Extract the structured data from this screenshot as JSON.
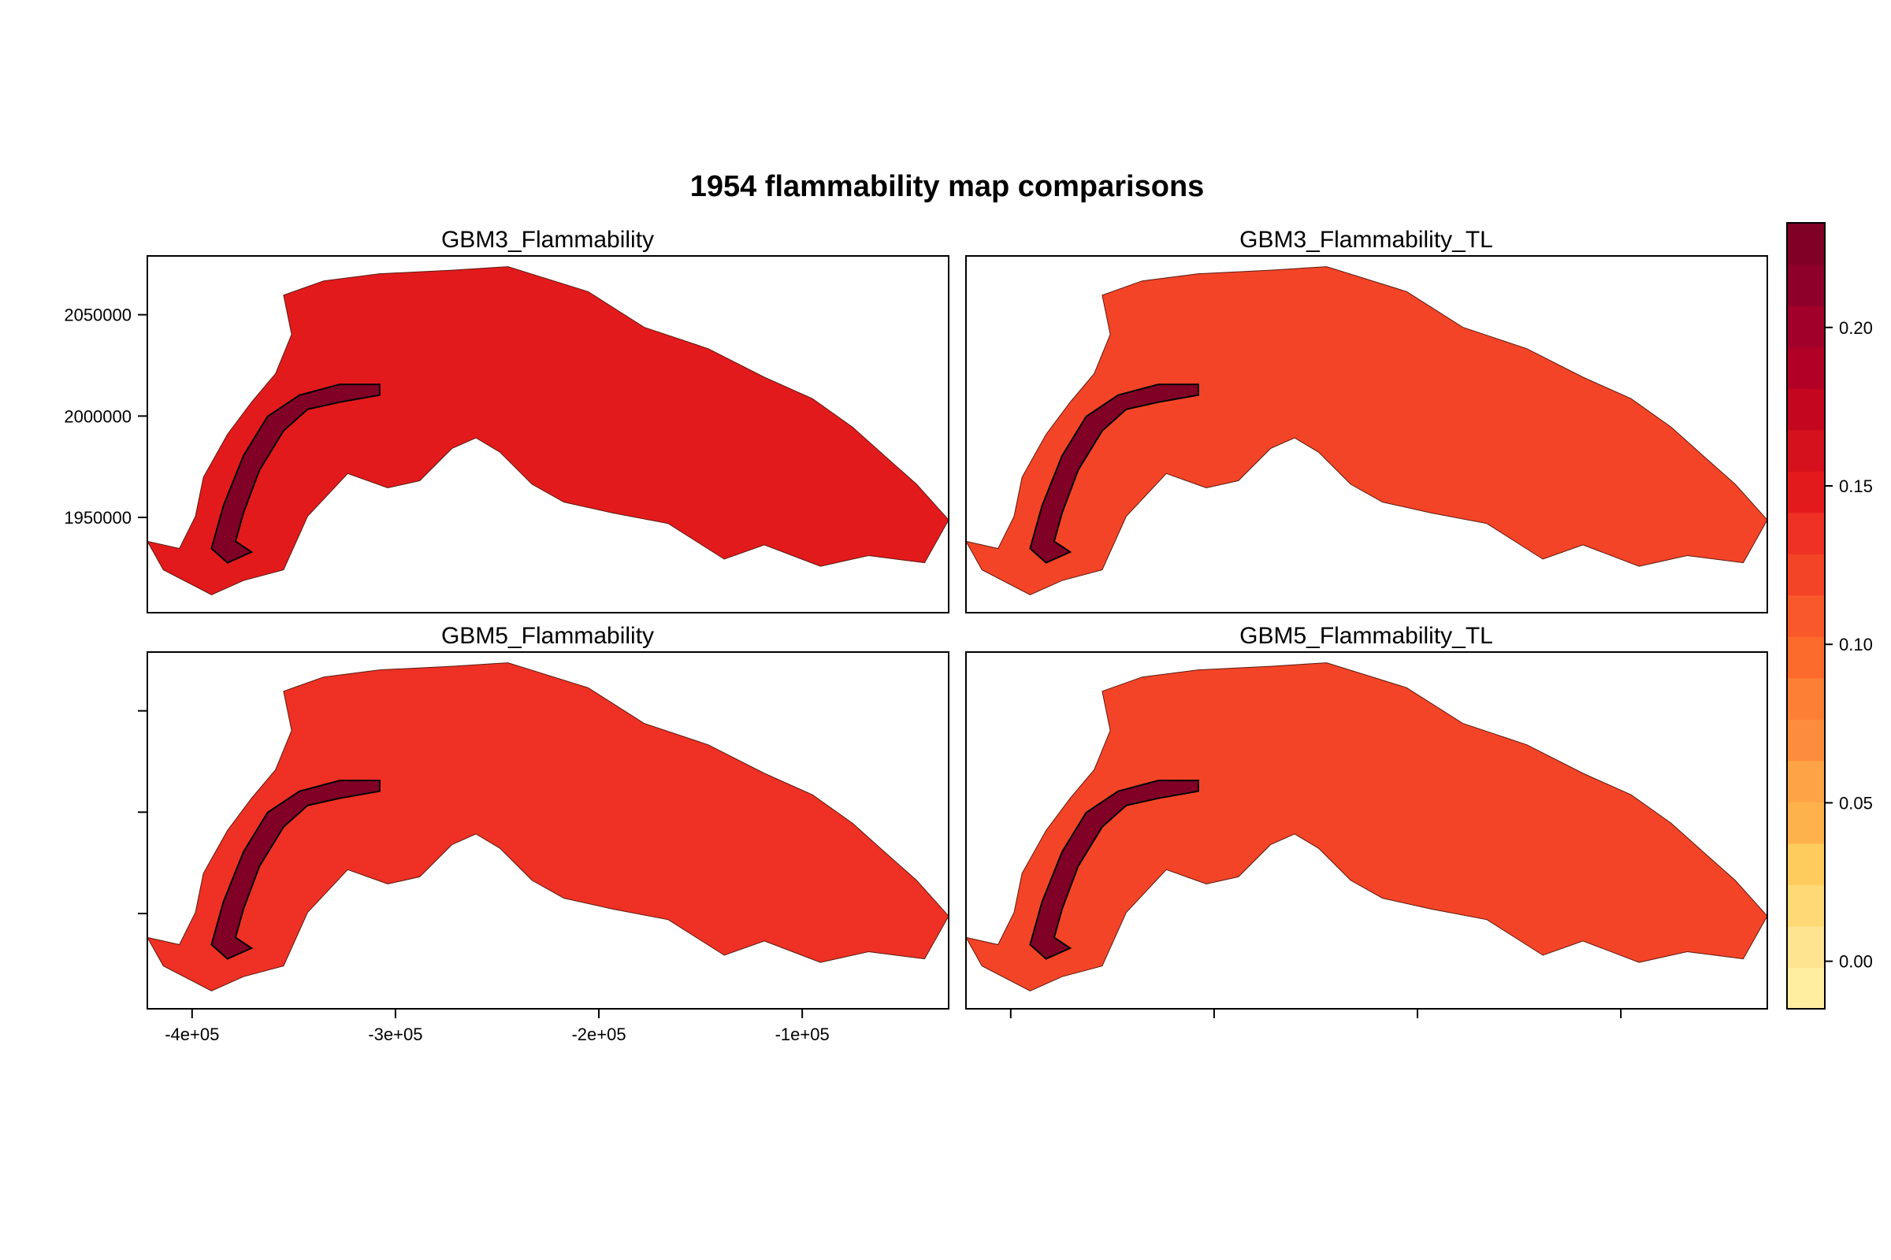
{
  "chart_data": {
    "type": "heatmap",
    "title": "1954 flammability map comparisons",
    "layout": "2x2 small multiples, shared axes",
    "panels": [
      {
        "title": "GBM3_Flammability",
        "dominant_value": 0.145,
        "corridor_value": 0.23
      },
      {
        "title": "GBM3_Flammability_TL",
        "dominant_value": 0.12,
        "corridor_value": 0.23
      },
      {
        "title": "GBM5_Flammability",
        "dominant_value": 0.135,
        "corridor_value": 0.23
      },
      {
        "title": "GBM5_Flammability_TL",
        "dominant_value": 0.12,
        "corridor_value": 0.23
      }
    ],
    "x_ticks": [
      {
        "value": -400000,
        "label": "-4e+05"
      },
      {
        "value": -300000,
        "label": "-3e+05"
      },
      {
        "value": -200000,
        "label": "-2e+05"
      },
      {
        "value": -100000,
        "label": "-1e+05"
      }
    ],
    "y_ticks": [
      {
        "value": 1950000,
        "label": "1950000"
      },
      {
        "value": 2000000,
        "label": "2000000"
      },
      {
        "value": 2050000,
        "label": "2050000"
      }
    ],
    "xlim": [
      -422000,
      -28000
    ],
    "ylim": [
      1903000,
      2079000
    ],
    "colorbar": {
      "range": [
        -0.015,
        0.233
      ],
      "ticks": [
        {
          "value": 0.0,
          "label": "0.00"
        },
        {
          "value": 0.05,
          "label": "0.05"
        },
        {
          "value": 0.1,
          "label": "0.10"
        },
        {
          "value": 0.15,
          "label": "0.15"
        },
        {
          "value": 0.2,
          "label": "0.20"
        }
      ],
      "colors": [
        "#FFEDA0",
        "#FEE391",
        "#FED976",
        "#FECC5C",
        "#FEB24C",
        "#FEA446",
        "#FD8D3C",
        "#FC7F35",
        "#FC6A2C",
        "#F9592A",
        "#F44427",
        "#EE3124",
        "#E31A1C",
        "#D4111D",
        "#C4071F",
        "#B10026",
        "#A0002A",
        "#8E0029",
        "#800026"
      ]
    },
    "grid": false,
    "legend": "right"
  }
}
